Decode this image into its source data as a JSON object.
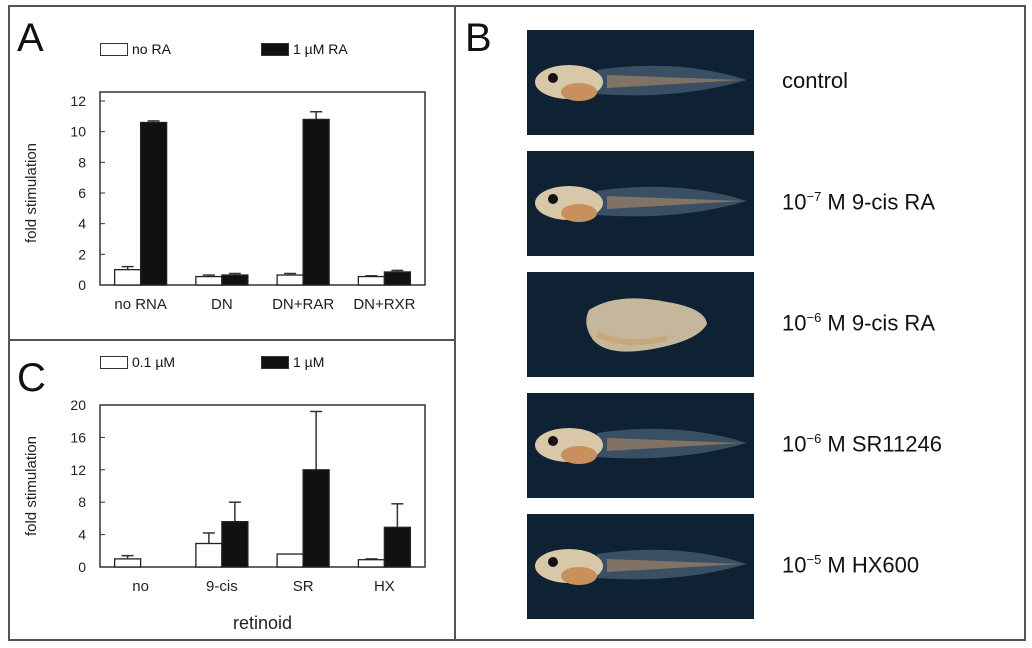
{
  "panels": {
    "a": {
      "letter": "A"
    },
    "b": {
      "letter": "B"
    },
    "c": {
      "letter": "C"
    }
  },
  "chart_data": [
    {
      "panel": "A",
      "type": "bar",
      "ylabel": "fold stimulation",
      "xlabel": "",
      "ylim": [
        0,
        12
      ],
      "yticks": [
        "0",
        "2",
        "4",
        "6",
        "8",
        "10",
        "12"
      ],
      "categories": [
        "no RNA",
        "DN",
        "DN+RAR",
        "DN+RXR"
      ],
      "legend_position": "top",
      "series": [
        {
          "name": "no RA",
          "color": "#ffffff",
          "values": [
            1.0,
            0.55,
            0.65,
            0.55
          ],
          "errors": [
            0.2,
            0.1,
            0.1,
            0.05
          ]
        },
        {
          "name": "1 µM RA",
          "color": "#111111",
          "values": [
            10.6,
            0.65,
            10.8,
            0.85
          ],
          "errors": [
            0.1,
            0.1,
            0.5,
            0.1
          ]
        }
      ]
    },
    {
      "panel": "C",
      "type": "bar",
      "ylabel": "fold stimulation",
      "xlabel": "retinoid",
      "ylim": [
        0,
        20
      ],
      "yticks": [
        "0",
        "4",
        "8",
        "12",
        "16",
        "20"
      ],
      "categories": [
        "no",
        "9-cis",
        "SR",
        "HX"
      ],
      "legend_position": "top",
      "series": [
        {
          "name": "0.1 µM",
          "color": "#ffffff",
          "values": [
            1.0,
            2.9,
            1.6,
            0.9
          ],
          "errors": [
            0.4,
            1.3,
            0,
            0.1
          ]
        },
        {
          "name": "1 µM",
          "color": "#111111",
          "values": [
            null,
            5.6,
            12.0,
            4.9
          ],
          "errors": [
            null,
            2.4,
            7.2,
            2.9
          ]
        }
      ]
    }
  ],
  "photos": [
    {
      "label": "control",
      "base": "",
      "exp": "",
      "rest": "",
      "shape": "normal"
    },
    {
      "label": "",
      "base": "10",
      "exp": "−7",
      "rest": " M 9-cis RA",
      "shape": "normal"
    },
    {
      "label": "",
      "base": "10",
      "exp": "−6",
      "rest": " M 9-cis RA",
      "shape": "deformed"
    },
    {
      "label": "",
      "base": "10",
      "exp": "−6",
      "rest": " M SR11246",
      "shape": "normal"
    },
    {
      "label": "",
      "base": "10",
      "exp": "−5",
      "rest": " M HX600",
      "shape": "normal"
    }
  ]
}
